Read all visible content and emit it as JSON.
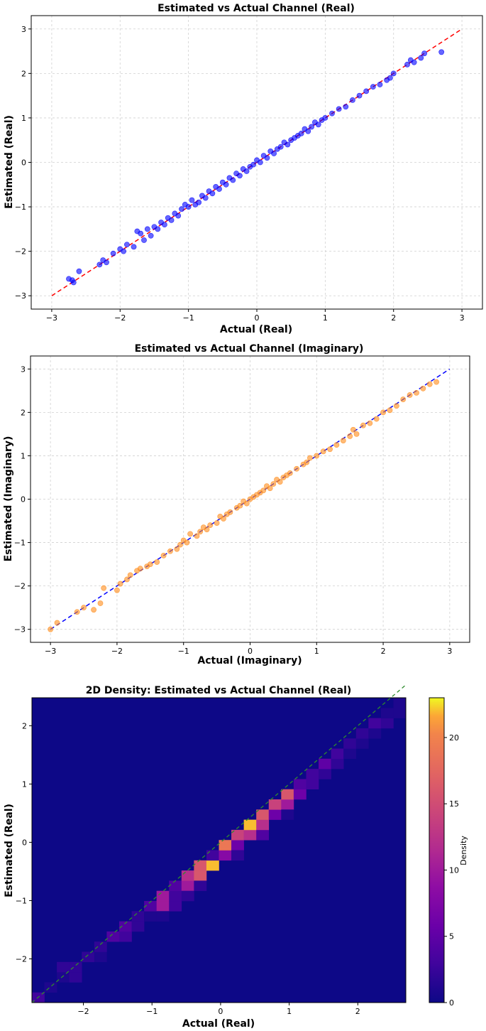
{
  "chart_data": [
    {
      "type": "scatter",
      "title": "Estimated vs Actual Channel (Real)",
      "xlabel": "Actual (Real)",
      "ylabel": "Estimated (Real)",
      "xlim": [
        -3.3,
        3.3
      ],
      "ylim": [
        -3.3,
        3.3
      ],
      "xticks": [
        "−3",
        "−2",
        "−1",
        "0",
        "1",
        "2",
        "3"
      ],
      "yticks": [
        "−3",
        "−2",
        "−1",
        "0",
        "1",
        "2",
        "3"
      ],
      "grid": true,
      "point_color": "#0000ff",
      "reference_line": {
        "from": [
          -3,
          -3
        ],
        "to": [
          3,
          3
        ],
        "color": "#ff0000",
        "style": "dashed"
      },
      "series": [
        {
          "x": [
            -2.75,
            -2.7,
            -2.68,
            -2.6,
            -2.3,
            -2.25,
            -2.2,
            -2.1,
            -2.0,
            -1.95,
            -1.9,
            -1.8,
            -1.75,
            -1.7,
            -1.65,
            -1.6,
            -1.55,
            -1.5,
            -1.45,
            -1.4,
            -1.35,
            -1.3,
            -1.25,
            -1.2,
            -1.15,
            -1.1,
            -1.05,
            -1.0,
            -0.95,
            -0.9,
            -0.85,
            -0.8,
            -0.75,
            -0.7,
            -0.65,
            -0.6,
            -0.55,
            -0.5,
            -0.45,
            -0.4,
            -0.35,
            -0.3,
            -0.25,
            -0.2,
            -0.15,
            -0.1,
            -0.05,
            0.0,
            0.05,
            0.1,
            0.15,
            0.2,
            0.25,
            0.3,
            0.35,
            0.4,
            0.45,
            0.5,
            0.55,
            0.6,
            0.65,
            0.7,
            0.75,
            0.8,
            0.85,
            0.9,
            0.95,
            1.0,
            1.1,
            1.2,
            1.3,
            1.4,
            1.5,
            1.6,
            1.7,
            1.8,
            1.9,
            1.95,
            2.0,
            2.2,
            2.25,
            2.3,
            2.4,
            2.45,
            2.7
          ],
          "y": [
            -2.62,
            -2.65,
            -2.7,
            -2.45,
            -2.3,
            -2.2,
            -2.25,
            -2.05,
            -1.95,
            -2.0,
            -1.85,
            -1.9,
            -1.55,
            -1.6,
            -1.75,
            -1.5,
            -1.65,
            -1.45,
            -1.5,
            -1.35,
            -1.4,
            -1.25,
            -1.3,
            -1.15,
            -1.2,
            -1.05,
            -0.95,
            -1.0,
            -0.85,
            -0.95,
            -0.9,
            -0.75,
            -0.8,
            -0.65,
            -0.7,
            -0.55,
            -0.6,
            -0.45,
            -0.5,
            -0.35,
            -0.4,
            -0.25,
            -0.3,
            -0.15,
            -0.2,
            -0.1,
            -0.05,
            0.05,
            0.0,
            0.15,
            0.1,
            0.25,
            0.2,
            0.3,
            0.35,
            0.45,
            0.4,
            0.5,
            0.55,
            0.6,
            0.65,
            0.75,
            0.7,
            0.8,
            0.9,
            0.85,
            0.95,
            1.0,
            1.1,
            1.2,
            1.25,
            1.4,
            1.5,
            1.6,
            1.7,
            1.75,
            1.85,
            1.9,
            2.0,
            2.2,
            2.3,
            2.25,
            2.35,
            2.45,
            2.48
          ]
        }
      ]
    },
    {
      "type": "scatter",
      "title": "Estimated vs Actual Channel (Imaginary)",
      "xlabel": "Actual (Imaginary)",
      "ylabel": "Estimated (Imaginary)",
      "xlim": [
        -3.3,
        3.3
      ],
      "ylim": [
        -3.3,
        3.3
      ],
      "xticks": [
        "−3",
        "−2",
        "−1",
        "0",
        "1",
        "2",
        "3"
      ],
      "yticks": [
        "−3",
        "−2",
        "−1",
        "0",
        "1",
        "2",
        "3"
      ],
      "grid": true,
      "point_color": "#ff8c1a",
      "reference_line": {
        "from": [
          -3,
          -3
        ],
        "to": [
          3,
          3
        ],
        "color": "#0000ff",
        "style": "dashed"
      },
      "series": [
        {
          "x": [
            -3.0,
            -2.9,
            -2.6,
            -2.5,
            -2.35,
            -2.25,
            -2.2,
            -2.0,
            -1.95,
            -1.85,
            -1.8,
            -1.7,
            -1.65,
            -1.55,
            -1.5,
            -1.4,
            -1.3,
            -1.2,
            -1.1,
            -1.05,
            -1.0,
            -0.95,
            -0.9,
            -0.8,
            -0.75,
            -0.7,
            -0.65,
            -0.6,
            -0.5,
            -0.45,
            -0.4,
            -0.35,
            -0.3,
            -0.2,
            -0.15,
            -0.1,
            -0.05,
            0.0,
            0.05,
            0.1,
            0.15,
            0.2,
            0.25,
            0.3,
            0.35,
            0.4,
            0.45,
            0.5,
            0.55,
            0.6,
            0.7,
            0.8,
            0.85,
            0.9,
            1.0,
            1.1,
            1.2,
            1.3,
            1.4,
            1.5,
            1.55,
            1.6,
            1.7,
            1.8,
            1.9,
            2.0,
            2.1,
            2.2,
            2.3,
            2.4,
            2.5,
            2.6,
            2.7,
            2.8
          ],
          "y": [
            -3.0,
            -2.85,
            -2.6,
            -2.5,
            -2.55,
            -2.4,
            -2.05,
            -2.1,
            -1.95,
            -1.85,
            -1.75,
            -1.65,
            -1.6,
            -1.55,
            -1.5,
            -1.45,
            -1.3,
            -1.2,
            -1.15,
            -1.05,
            -0.95,
            -1.0,
            -0.8,
            -0.85,
            -0.75,
            -0.65,
            -0.7,
            -0.6,
            -0.55,
            -0.4,
            -0.45,
            -0.35,
            -0.3,
            -0.2,
            -0.15,
            -0.05,
            -0.1,
            0.0,
            0.05,
            0.1,
            0.15,
            0.2,
            0.3,
            0.25,
            0.35,
            0.45,
            0.4,
            0.5,
            0.55,
            0.6,
            0.7,
            0.8,
            0.85,
            0.95,
            1.0,
            1.1,
            1.15,
            1.25,
            1.35,
            1.45,
            1.6,
            1.5,
            1.7,
            1.75,
            1.85,
            2.0,
            2.05,
            2.15,
            2.3,
            2.4,
            2.45,
            2.55,
            2.65,
            2.7
          ]
        }
      ]
    },
    {
      "type": "heatmap",
      "title": "2D Density: Estimated vs Actual Channel (Real)",
      "xlabel": "Actual (Real)",
      "ylabel": "Estimated (Real)",
      "xlim": [
        -2.75,
        2.7
      ],
      "ylim": [
        -2.75,
        2.48
      ],
      "xticks": [
        "−2",
        "−1",
        "0",
        "1",
        "2"
      ],
      "yticks": [
        "−2",
        "−1",
        "0",
        "1",
        "2"
      ],
      "bins": 30,
      "colormap": "plasma",
      "colorbar_label": "Density",
      "colorbar_ticks": [
        "0",
        "5",
        "10",
        "15",
        "20"
      ],
      "vmax": 23,
      "reference_line": {
        "from": [
          -2.75,
          -2.75
        ],
        "to": [
          2.7,
          2.7
        ],
        "color": "#2e8b2e",
        "style": "dashed"
      },
      "cells": [
        [
          0,
          0,
          3
        ],
        [
          1,
          1,
          1
        ],
        [
          2,
          2,
          1
        ],
        [
          2,
          3,
          2
        ],
        [
          3,
          2,
          2
        ],
        [
          3,
          3,
          2
        ],
        [
          4,
          4,
          2
        ],
        [
          5,
          4,
          1
        ],
        [
          5,
          5,
          2
        ],
        [
          6,
          6,
          4
        ],
        [
          7,
          6,
          3
        ],
        [
          7,
          7,
          4
        ],
        [
          8,
          7,
          2
        ],
        [
          8,
          8,
          2
        ],
        [
          9,
          8,
          1
        ],
        [
          9,
          9,
          4
        ],
        [
          10,
          9,
          10
        ],
        [
          10,
          10,
          10
        ],
        [
          11,
          9,
          3
        ],
        [
          11,
          10,
          3
        ],
        [
          11,
          11,
          4
        ],
        [
          12,
          11,
          10
        ],
        [
          12,
          12,
          12
        ],
        [
          13,
          12,
          16
        ],
        [
          13,
          13,
          16
        ],
        [
          14,
          13,
          22
        ],
        [
          14,
          14,
          3
        ],
        [
          15,
          14,
          8
        ],
        [
          15,
          15,
          19
        ],
        [
          16,
          15,
          6
        ],
        [
          16,
          16,
          14
        ],
        [
          17,
          16,
          12
        ],
        [
          17,
          17,
          22
        ],
        [
          18,
          16,
          4
        ],
        [
          18,
          17,
          12
        ],
        [
          18,
          18,
          16
        ],
        [
          19,
          18,
          6
        ],
        [
          19,
          19,
          14
        ],
        [
          20,
          19,
          10
        ],
        [
          20,
          20,
          16
        ],
        [
          21,
          20,
          6
        ],
        [
          21,
          21,
          4
        ],
        [
          22,
          21,
          3
        ],
        [
          22,
          22,
          3
        ],
        [
          23,
          22,
          2
        ],
        [
          23,
          23,
          5
        ],
        [
          24,
          23,
          2
        ],
        [
          24,
          24,
          3
        ],
        [
          25,
          24,
          1
        ],
        [
          25,
          25,
          2
        ],
        [
          26,
          25,
          1
        ],
        [
          26,
          26,
          2
        ],
        [
          27,
          26,
          1
        ],
        [
          27,
          27,
          3
        ],
        [
          28,
          27,
          2
        ],
        [
          28,
          28,
          1
        ],
        [
          29,
          28,
          1
        ],
        [
          29,
          29,
          1
        ],
        [
          13,
          11,
          2
        ],
        [
          16,
          14,
          2
        ],
        [
          10,
          8,
          1
        ],
        [
          12,
          10,
          2
        ],
        [
          20,
          18,
          1
        ]
      ]
    }
  ]
}
